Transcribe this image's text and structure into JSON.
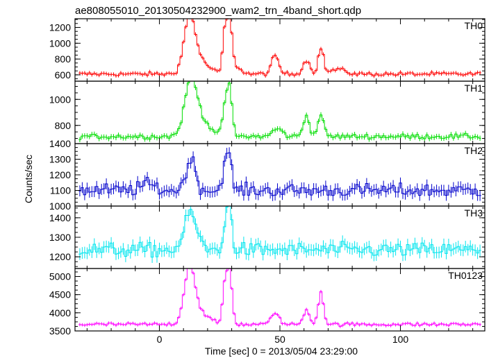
{
  "chart_data": {
    "type": "line",
    "title": "ae808055010_20130504232900_wam2_trn_4band_short.qdp",
    "xlabel": "Time [sec] 0 = 2013/05/04 23:29:00",
    "ylabel": "Counts/sec",
    "xlim": [
      -35,
      135
    ],
    "xticks": [
      0,
      50,
      100
    ],
    "x_minor_step": 10,
    "grid": false,
    "style": "histogram-step-with-error-bars",
    "panels": [
      {
        "name": "TH0",
        "color": "#ff0000",
        "ylim": [
          520,
          1310
        ],
        "yticks": [
          600,
          800,
          1000,
          1200
        ],
        "baseline": 610,
        "noise": 18,
        "err": 25,
        "features": [
          {
            "x": 12.5,
            "amp": 650,
            "w": 2.2
          },
          {
            "x": 16,
            "amp": 180,
            "w": 4
          },
          {
            "x": 27,
            "amp": 440,
            "w": 0.9
          },
          {
            "x": 29,
            "amp": 680,
            "w": 1.1
          },
          {
            "x": 32,
            "amp": 90,
            "w": 2
          },
          {
            "x": 48,
            "amp": 230,
            "w": 1.5
          },
          {
            "x": 61,
            "amp": 170,
            "w": 1.5
          },
          {
            "x": 67,
            "amp": 330,
            "w": 1.1
          },
          {
            "x": 74,
            "amp": 60,
            "w": 3
          }
        ]
      },
      {
        "name": "TH1",
        "color": "#00dd00",
        "ylim": [
          660,
          1140
        ],
        "yticks": [
          800,
          1000
        ],
        "baseline": 715,
        "noise": 14,
        "err": 20,
        "features": [
          {
            "x": 13,
            "amp": 380,
            "w": 2.5
          },
          {
            "x": 17,
            "amp": 120,
            "w": 4
          },
          {
            "x": 27,
            "amp": 190,
            "w": 0.9
          },
          {
            "x": 29,
            "amp": 380,
            "w": 1.1
          },
          {
            "x": 49,
            "amp": 60,
            "w": 2
          },
          {
            "x": 61,
            "amp": 160,
            "w": 1.3
          },
          {
            "x": 67,
            "amp": 180,
            "w": 1.1
          }
        ]
      },
      {
        "name": "TH2",
        "color": "#0000cc",
        "ylim": [
          1000,
          1400
        ],
        "yticks": [
          1000,
          1100,
          1200,
          1300,
          1400
        ],
        "baseline": 1100,
        "noise": 30,
        "err": 35,
        "features": [
          {
            "x": 13,
            "amp": 200,
            "w": 2
          },
          {
            "x": 27,
            "amp": 150,
            "w": 1
          },
          {
            "x": 29,
            "amp": 200,
            "w": 1.1
          },
          {
            "x": -5,
            "amp": 40,
            "w": 3
          }
        ]
      },
      {
        "name": "TH3",
        "color": "#00e5ee",
        "ylim": [
          1140,
          1460
        ],
        "yticks": [
          1200,
          1300,
          1400
        ],
        "baseline": 1235,
        "noise": 26,
        "err": 30,
        "features": [
          {
            "x": 13,
            "amp": 190,
            "w": 2.5
          },
          {
            "x": 29,
            "amp": 230,
            "w": 1.1
          },
          {
            "x": 27,
            "amp": 80,
            "w": 1
          }
        ]
      },
      {
        "name": "TH0123",
        "color": "#ff00ff",
        "ylim": [
          3500,
          5220
        ],
        "yticks": [
          3500,
          4000,
          4500,
          5000
        ],
        "baseline": 3680,
        "noise": 35,
        "err": 45,
        "features": [
          {
            "x": 12.5,
            "amp": 1450,
            "w": 2.1
          },
          {
            "x": 16,
            "amp": 350,
            "w": 4
          },
          {
            "x": 27,
            "amp": 900,
            "w": 0.9
          },
          {
            "x": 29,
            "amp": 1500,
            "w": 1.1
          },
          {
            "x": 48,
            "amp": 350,
            "w": 1.5
          },
          {
            "x": 61,
            "amp": 400,
            "w": 1.3
          },
          {
            "x": 67,
            "amp": 900,
            "w": 1.1
          }
        ]
      }
    ]
  }
}
